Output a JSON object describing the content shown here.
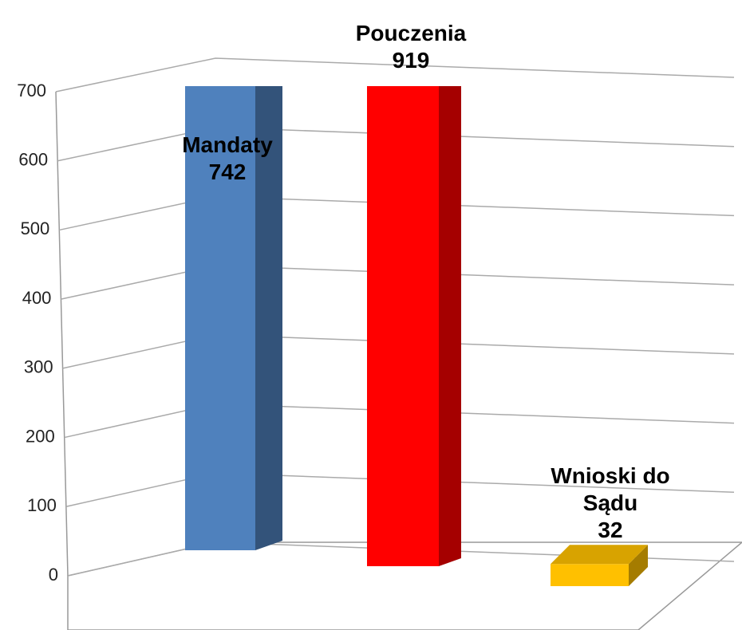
{
  "chart_data": {
    "type": "bar3d",
    "categories": [
      "Mandaty",
      "Pouczenia",
      "Wnioski do Sądu"
    ],
    "values": [
      742,
      919,
      32
    ],
    "colors": [
      "#4f81bd",
      "#ff0000",
      "#ffc000"
    ],
    "ylim": [
      0,
      700
    ],
    "yticks": [
      0,
      100,
      200,
      300,
      400,
      500,
      600,
      700
    ],
    "grid": true
  }
}
